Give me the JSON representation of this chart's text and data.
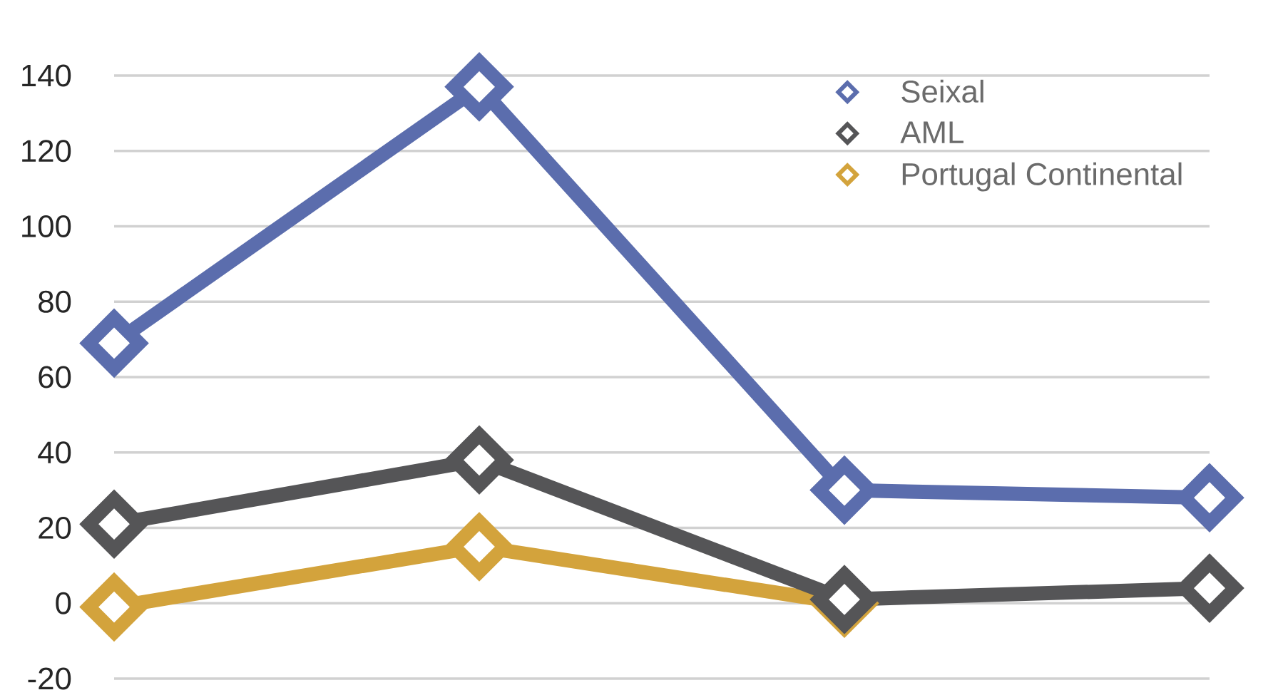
{
  "chart_data": {
    "type": "line",
    "categories": [
      null,
      null,
      null,
      null
    ],
    "series": [
      {
        "name": "Seixal",
        "color": "#5b6dad",
        "values": [
          69,
          137,
          30,
          28
        ]
      },
      {
        "name": "AML",
        "color": "#555557",
        "values": [
          21,
          38,
          1,
          4
        ]
      },
      {
        "name": "Portugal Continental",
        "color": "#d3a33c",
        "values": [
          -1,
          15,
          0,
          null
        ]
      }
    ],
    "ylim": [
      -20,
      140
    ],
    "yticks": [
      -20,
      0,
      20,
      40,
      60,
      80,
      100,
      120,
      140
    ],
    "grid": "y",
    "legend": "top right",
    "marker": "diamond",
    "line_style": "solid"
  }
}
